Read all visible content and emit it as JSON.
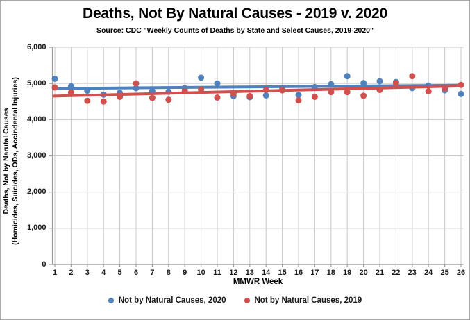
{
  "chart": {
    "title": "Deaths, Not By Natural Causes - 2019 v. 2020",
    "subtitle": "Source: CDC \"Weekly Counts of Deaths by State and Select Causes, 2019-2020\"",
    "x_axis_title": "MMWR Week",
    "y_axis_title_line1": "Deaths, Not by Narutal Causes",
    "y_axis_title_line2": "(Homicides, Suicides, ODs, Accindental Injuries)"
  },
  "chart_data": {
    "type": "scatter",
    "title": "Deaths, Not By Natural Causes - 2019 v. 2020",
    "subtitle": "Source: CDC \"Weekly Counts of Deaths by State and Select Causes, 2019-2020\"",
    "xlabel": "MMWR Week",
    "ylabel": "Deaths, Not by Narutal Causes (Homicides, Suicides, ODs, Accindental Injuries)",
    "x": [
      1,
      2,
      3,
      4,
      5,
      6,
      7,
      8,
      9,
      10,
      11,
      12,
      13,
      14,
      15,
      16,
      17,
      18,
      19,
      20,
      21,
      22,
      23,
      24,
      25,
      26
    ],
    "xlim": [
      1,
      26
    ],
    "ylim": [
      0,
      6000
    ],
    "y_tick_values": [
      0,
      1000,
      2000,
      3000,
      4000,
      5000,
      6000
    ],
    "y_tick_labels": [
      "0",
      "1,000",
      "2,000",
      "3,000",
      "4,000",
      "5,000",
      "6,000"
    ],
    "grid": true,
    "legend_position": "bottom",
    "series": [
      {
        "name": "Not by Natural Causes, 2020",
        "color": "#4F81BD",
        "values": [
          5130,
          4920,
          4800,
          4690,
          4740,
          4870,
          4790,
          4770,
          4870,
          5160,
          5000,
          4650,
          4620,
          4670,
          4870,
          4680,
          4900,
          4980,
          5200,
          5010,
          5060,
          5040,
          4870,
          4940,
          4810,
          4710
        ]
      },
      {
        "name": "Not by Natural Causes, 2019",
        "color": "#D0504E",
        "values": [
          4890,
          4750,
          4520,
          4500,
          4630,
          5000,
          4600,
          4550,
          4790,
          4830,
          4610,
          4720,
          4650,
          4820,
          4810,
          4530,
          4630,
          4760,
          4760,
          4660,
          4820,
          5010,
          5200,
          4780,
          4860,
          4960
        ]
      }
    ],
    "trendlines": [
      {
        "series": "Not by Natural Causes, 2020",
        "color": "#4F81BD",
        "start_value": 4860,
        "end_value": 4950
      },
      {
        "series": "Not by Natural Causes, 2019",
        "color": "#D0504E",
        "start_value": 4650,
        "end_value": 4930
      }
    ],
    "colors": {
      "gridline": "#C8C8C8",
      "axis": "#9B9B9B",
      "background": "#FFFFFF"
    }
  }
}
